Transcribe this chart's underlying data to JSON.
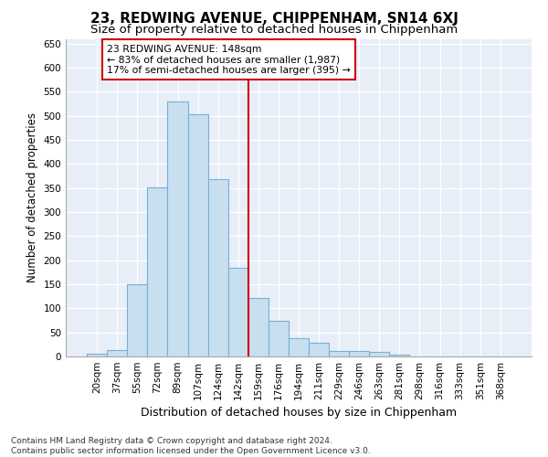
{
  "title": "23, REDWING AVENUE, CHIPPENHAM, SN14 6XJ",
  "subtitle": "Size of property relative to detached houses in Chippenham",
  "xlabel": "Distribution of detached houses by size in Chippenham",
  "ylabel": "Number of detached properties",
  "footer_line1": "Contains HM Land Registry data © Crown copyright and database right 2024.",
  "footer_line2": "Contains public sector information licensed under the Open Government Licence v3.0.",
  "categories": [
    "20sqm",
    "37sqm",
    "55sqm",
    "72sqm",
    "89sqm",
    "107sqm",
    "124sqm",
    "142sqm",
    "159sqm",
    "176sqm",
    "194sqm",
    "211sqm",
    "229sqm",
    "246sqm",
    "263sqm",
    "281sqm",
    "298sqm",
    "316sqm",
    "333sqm",
    "351sqm",
    "368sqm"
  ],
  "values": [
    5,
    13,
    150,
    352,
    530,
    503,
    368,
    185,
    122,
    75,
    38,
    28,
    12,
    12,
    10,
    3,
    0,
    0,
    0,
    0,
    0
  ],
  "bar_color": "#c8dff0",
  "bar_edge_color": "#7aafd4",
  "bar_alpha": 1.0,
  "vline_x_index": 7.5,
  "vline_color": "#cc0000",
  "annotation_line1": "23 REDWING AVENUE: 148sqm",
  "annotation_line2": "← 83% of detached houses are smaller (1,987)",
  "annotation_line3": "17% of semi-detached houses are larger (395) →",
  "annotation_box_color": "#cc0000",
  "ylim": [
    0,
    660
  ],
  "yticks": [
    0,
    50,
    100,
    150,
    200,
    250,
    300,
    350,
    400,
    450,
    500,
    550,
    600,
    650
  ],
  "plot_bg_color": "#e8eef8",
  "title_fontsize": 11,
  "subtitle_fontsize": 9.5,
  "xlabel_fontsize": 9,
  "ylabel_fontsize": 8.5,
  "tick_fontsize": 7.5,
  "footer_fontsize": 6.5
}
